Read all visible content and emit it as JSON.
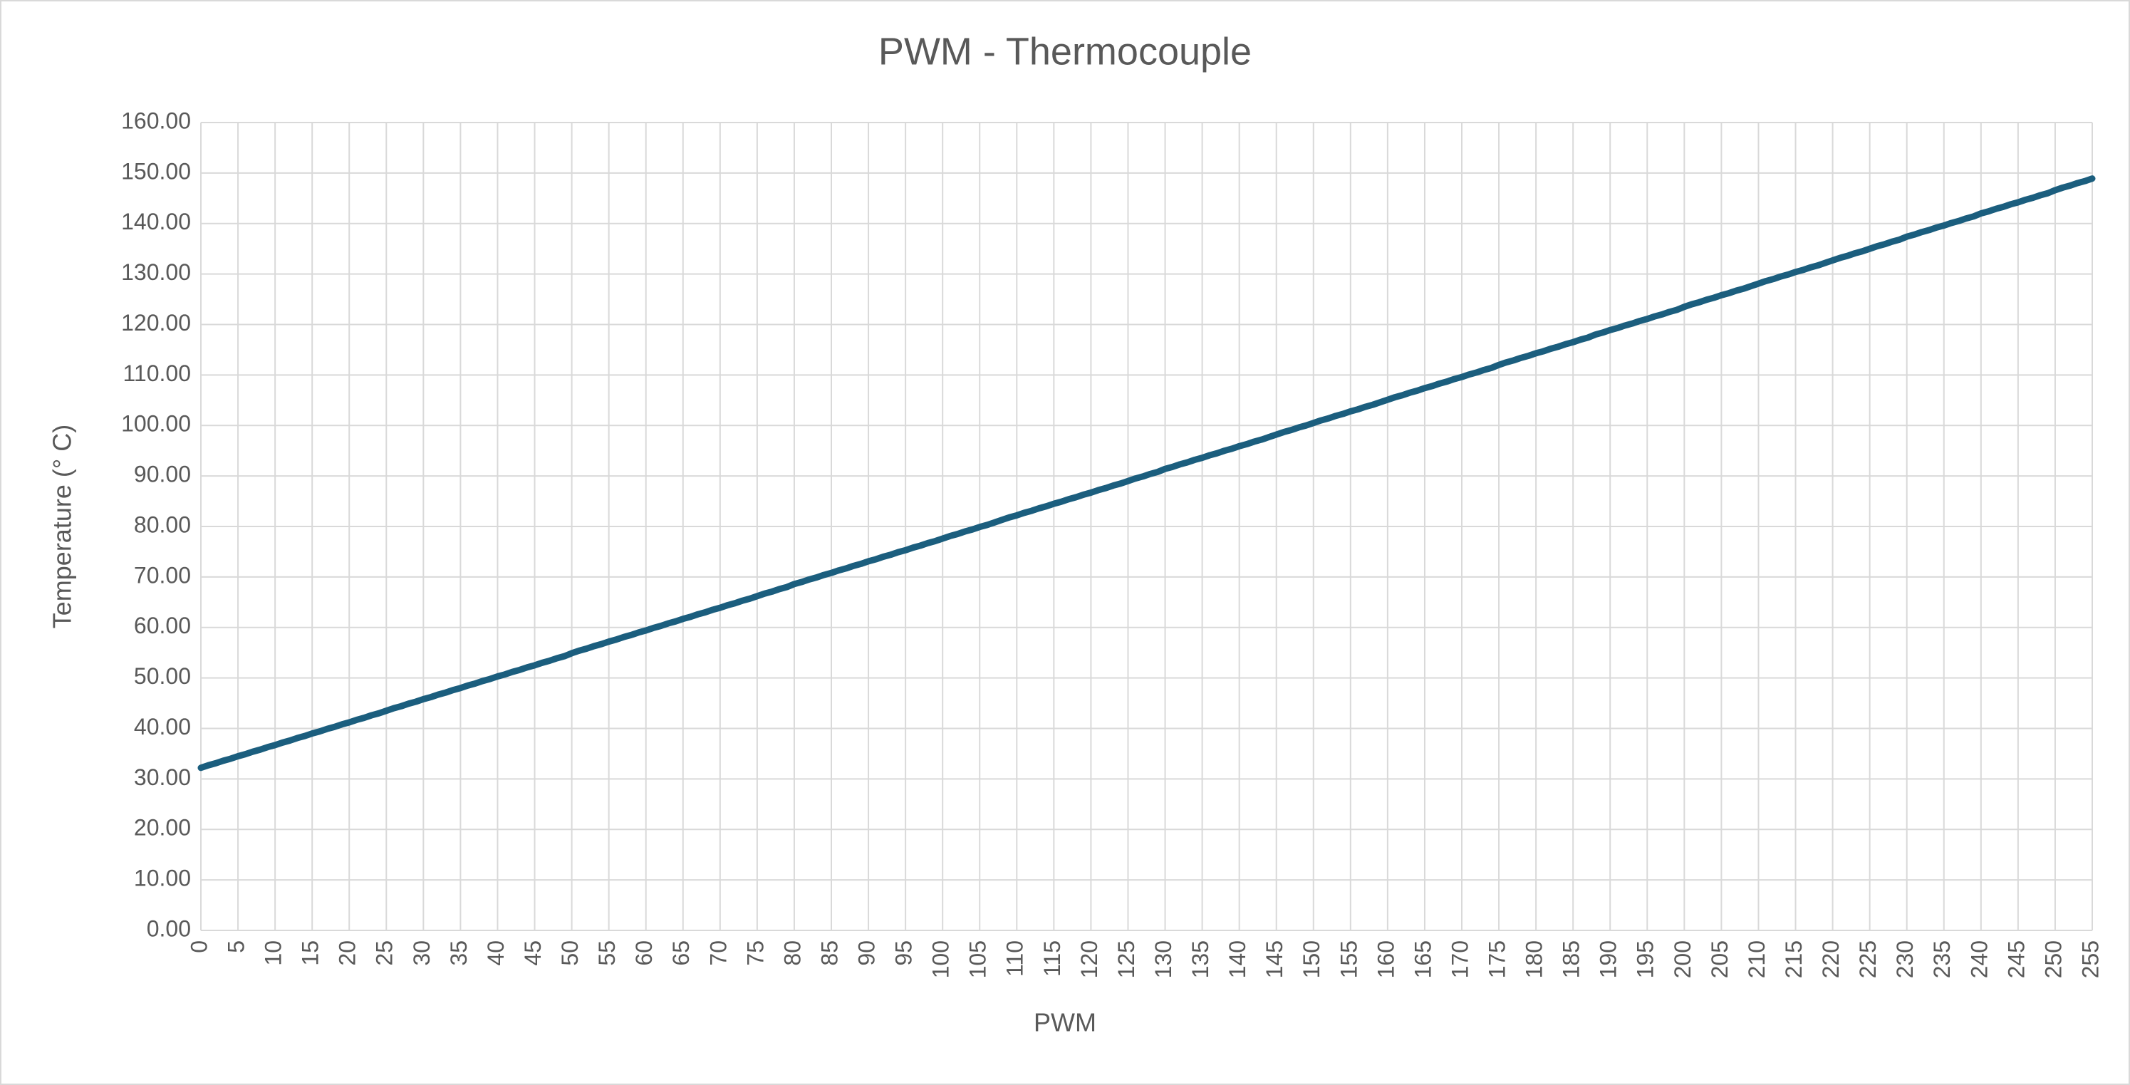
{
  "chart_data": {
    "type": "line",
    "title": "PWM - Thermocouple",
    "x_label": "PWM",
    "y_label": "Temperature (° C)",
    "categories": [
      "0",
      null,
      null,
      null,
      null,
      "5",
      null,
      null,
      null,
      null,
      "10",
      null,
      null,
      null,
      null,
      "15",
      null,
      null,
      null,
      null,
      "20",
      null,
      null,
      null,
      null,
      "25",
      null,
      null,
      null,
      null,
      "30",
      null,
      null,
      null,
      null,
      "35",
      null,
      null,
      null,
      null,
      "40",
      null,
      null,
      null,
      null,
      "45",
      null,
      null,
      null,
      null,
      "50",
      null,
      null,
      null,
      null,
      "55",
      null,
      null,
      null,
      null,
      "60",
      null,
      null,
      null,
      null,
      "65",
      null,
      null,
      null,
      null,
      "70",
      null,
      null,
      null,
      null,
      "75",
      null,
      null,
      null,
      null,
      "80",
      null,
      null,
      null,
      null,
      "85",
      null,
      null,
      null,
      null,
      "90",
      null,
      null,
      null,
      null,
      "95",
      null,
      null,
      null,
      null,
      "100",
      null,
      null,
      null,
      null,
      "105",
      null,
      null,
      null,
      null,
      "110",
      null,
      null,
      null,
      null,
      "115",
      null,
      null,
      null,
      null,
      "120",
      null,
      null,
      null,
      null,
      "125",
      null,
      null,
      null,
      null,
      "130",
      null,
      null,
      null,
      null,
      "135",
      null,
      null,
      null,
      null,
      "140",
      null,
      null,
      null,
      null,
      "145",
      null,
      null,
      null,
      null,
      "150",
      null,
      null,
      null,
      null,
      "155",
      null,
      null,
      null,
      null,
      "160",
      null,
      null,
      null,
      null,
      "165",
      null,
      null,
      null,
      null,
      "170",
      null,
      null,
      null,
      null,
      "175",
      null,
      null,
      null,
      null,
      "180",
      null,
      null,
      null,
      null,
      "185",
      null,
      null,
      null,
      null,
      "190",
      null,
      null,
      null,
      null,
      "195",
      null,
      null,
      null,
      null,
      "200",
      null,
      null,
      null,
      null,
      "205",
      null,
      null,
      null,
      null,
      "210",
      null,
      null,
      null,
      null,
      "215",
      null,
      null,
      null,
      null,
      "220",
      null,
      null,
      null,
      null,
      "225",
      null,
      null,
      null,
      null,
      "230",
      null,
      null,
      null,
      null,
      "235",
      null,
      null,
      null,
      null,
      "240",
      null,
      null,
      null,
      null,
      "245",
      null,
      null,
      null,
      null,
      "250",
      null,
      null,
      null,
      null,
      "255"
    ],
    "values": [
      32.2,
      32.7,
      33.1,
      33.6,
      34.0,
      34.5,
      34.9,
      35.4,
      35.8,
      36.3,
      36.7,
      37.2,
      37.6,
      38.1,
      38.5,
      39.0,
      39.4,
      39.9,
      40.3,
      40.8,
      41.2,
      41.7,
      42.1,
      42.6,
      43.0,
      43.5,
      44.0,
      44.4,
      44.9,
      45.3,
      45.8,
      46.2,
      46.7,
      47.1,
      47.6,
      48.0,
      48.5,
      48.9,
      49.4,
      49.8,
      50.3,
      50.7,
      51.2,
      51.6,
      52.1,
      52.5,
      53.0,
      53.4,
      53.9,
      54.3,
      54.9,
      55.4,
      55.8,
      56.3,
      56.7,
      57.2,
      57.6,
      58.1,
      58.5,
      59.0,
      59.4,
      59.9,
      60.3,
      60.8,
      61.2,
      61.7,
      62.1,
      62.6,
      63.0,
      63.5,
      63.9,
      64.4,
      64.8,
      65.3,
      65.7,
      66.2,
      66.7,
      67.1,
      67.6,
      68.0,
      68.6,
      69.0,
      69.5,
      69.9,
      70.4,
      70.8,
      71.3,
      71.7,
      72.2,
      72.6,
      73.1,
      73.5,
      74.0,
      74.4,
      74.9,
      75.3,
      75.8,
      76.2,
      76.7,
      77.1,
      77.6,
      78.1,
      78.5,
      79.0,
      79.4,
      79.9,
      80.3,
      80.8,
      81.3,
      81.8,
      82.2,
      82.7,
      83.1,
      83.6,
      84.0,
      84.5,
      84.9,
      85.4,
      85.8,
      86.3,
      86.7,
      87.2,
      87.6,
      88.1,
      88.5,
      89.0,
      89.5,
      89.9,
      90.4,
      90.8,
      91.4,
      91.8,
      92.3,
      92.7,
      93.2,
      93.6,
      94.1,
      94.5,
      95.0,
      95.4,
      95.9,
      96.3,
      96.8,
      97.2,
      97.7,
      98.2,
      98.7,
      99.1,
      99.6,
      100.0,
      100.5,
      101.0,
      101.4,
      101.9,
      102.3,
      102.8,
      103.2,
      103.7,
      104.1,
      104.6,
      105.1,
      105.6,
      106.0,
      106.5,
      106.9,
      107.4,
      107.8,
      108.3,
      108.7,
      109.2,
      109.6,
      110.1,
      110.5,
      111.0,
      111.4,
      112.0,
      112.5,
      112.9,
      113.4,
      113.8,
      114.3,
      114.7,
      115.2,
      115.6,
      116.1,
      116.5,
      117.0,
      117.4,
      118.0,
      118.4,
      118.9,
      119.3,
      119.8,
      120.2,
      120.7,
      121.1,
      121.6,
      122.0,
      122.5,
      122.9,
      123.5,
      124.0,
      124.4,
      124.9,
      125.3,
      125.8,
      126.2,
      126.7,
      127.1,
      127.6,
      128.1,
      128.6,
      129.0,
      129.5,
      129.9,
      130.4,
      130.8,
      131.3,
      131.7,
      132.2,
      132.7,
      133.2,
      133.6,
      134.1,
      134.5,
      135.0,
      135.5,
      135.9,
      136.4,
      136.8,
      137.4,
      137.8,
      138.3,
      138.7,
      139.2,
      139.6,
      140.1,
      140.5,
      141.0,
      141.4,
      142.0,
      142.4,
      142.9,
      143.3,
      143.8,
      144.2,
      144.7,
      145.1,
      145.6,
      146.0,
      146.6,
      147.1,
      147.5,
      148.0,
      148.4,
      148.9
    ],
    "color": "#1b5e7e",
    "ylim": [
      0,
      160
    ],
    "yticks": [
      {
        "value": 0,
        "label": "0.00"
      },
      {
        "value": 10,
        "label": "10.00"
      },
      {
        "value": 20,
        "label": "20.00"
      },
      {
        "value": 30,
        "label": "30.00"
      },
      {
        "value": 40,
        "label": "40.00"
      },
      {
        "value": 50,
        "label": "50.00"
      },
      {
        "value": 60,
        "label": "60.00"
      },
      {
        "value": 70,
        "label": "70.00"
      },
      {
        "value": 80,
        "label": "80.00"
      },
      {
        "value": 90,
        "label": "90.00"
      },
      {
        "value": 100,
        "label": "100.00"
      },
      {
        "value": 110,
        "label": "110.00"
      },
      {
        "value": 120,
        "label": "120.00"
      },
      {
        "value": 130,
        "label": "130.00"
      },
      {
        "value": 140,
        "label": "140.00"
      },
      {
        "value": 150,
        "label": "150.00"
      },
      {
        "value": 160,
        "label": "160.00"
      }
    ],
    "grid": true
  }
}
